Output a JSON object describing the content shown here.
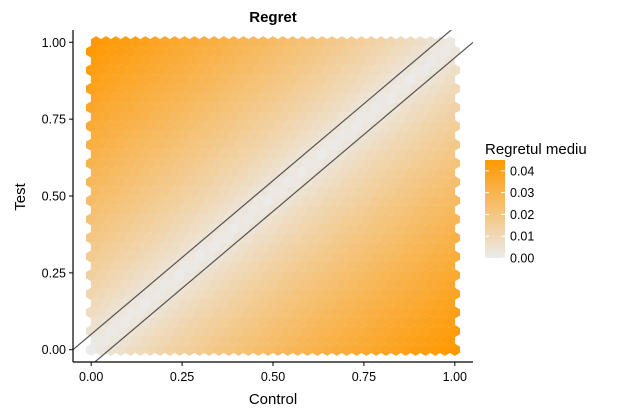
{
  "chart_data": {
    "type": "heatmap",
    "subtype": "hexbin",
    "title": "Regret",
    "xlabel": "Control",
    "ylabel": "Test",
    "xlim": [
      -0.05,
      1.05
    ],
    "ylim": [
      -0.04,
      1.04
    ],
    "x_ticks": [
      0.0,
      0.25,
      0.5,
      0.75,
      1.0
    ],
    "x_tick_labels": [
      "0.00",
      "0.25",
      "0.50",
      "0.75",
      "1.00"
    ],
    "y_ticks": [
      0.0,
      0.25,
      0.5,
      0.75,
      1.0
    ],
    "y_tick_labels": [
      "0.00",
      "0.25",
      "0.50",
      "0.75",
      "1.00"
    ],
    "grid": false,
    "value_function": "regret grows with |Test - Control|",
    "max_value": 0.045,
    "reference_lines": [
      {
        "intercept": 0.05,
        "slope": 1
      },
      {
        "intercept": -0.05,
        "slope": 1
      }
    ],
    "legend": {
      "title": "Regretul mediu",
      "position": "right",
      "gradient_colors": [
        "#ebebeb",
        "#ff9800"
      ],
      "ticks": [
        0.04,
        0.03,
        0.02,
        0.01,
        0.0
      ],
      "tick_labels": [
        "0.04",
        "0.03",
        "0.02",
        "0.01",
        "0.00"
      ]
    }
  }
}
